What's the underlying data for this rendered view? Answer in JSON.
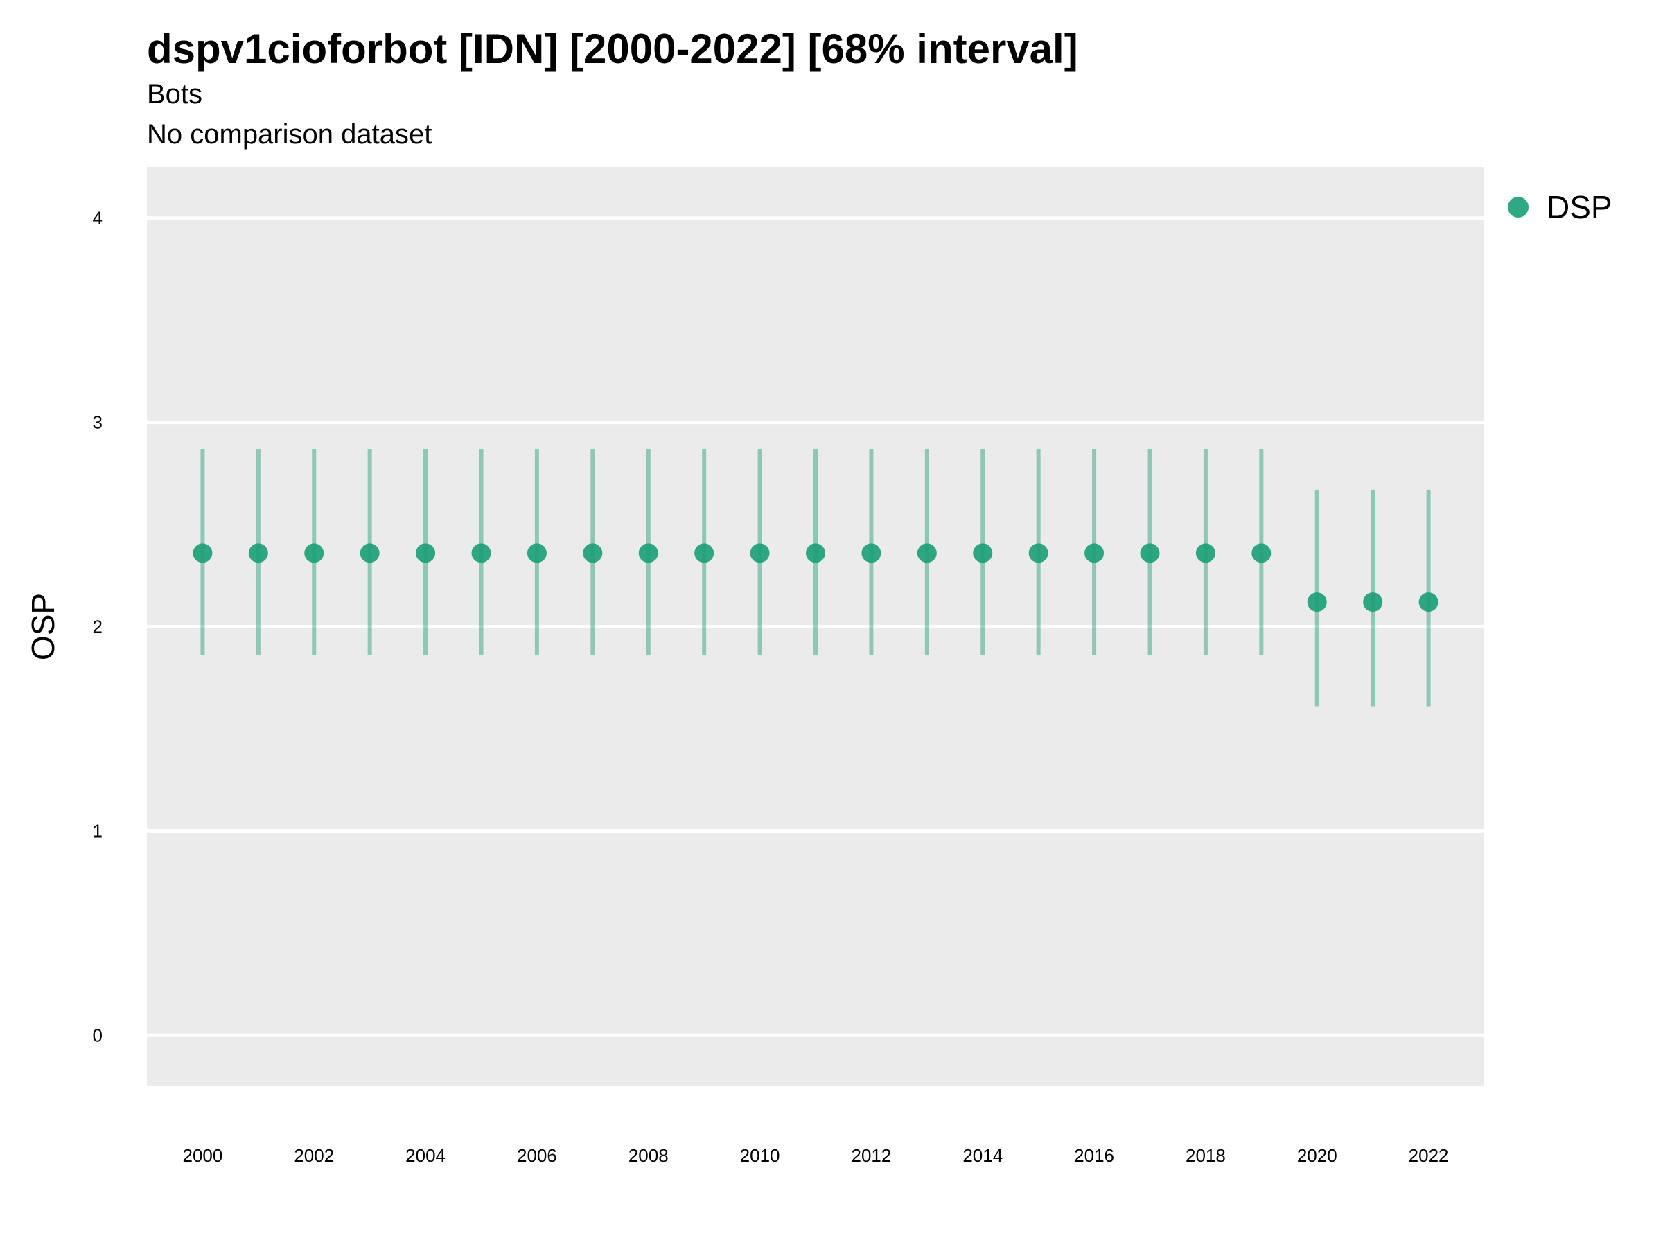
{
  "chart_data": {
    "type": "scatter",
    "title": "dspv1cioforbot [IDN] [2000-2022] [68% interval]",
    "subtitle": "Bots",
    "note": "No comparison dataset",
    "xlabel": "",
    "ylabel": "OSP",
    "xlim": [
      1999,
      2023
    ],
    "ylim": [
      -0.25,
      4.25
    ],
    "x_ticks": [
      2000,
      2002,
      2004,
      2006,
      2008,
      2010,
      2012,
      2014,
      2016,
      2018,
      2020,
      2022
    ],
    "y_ticks": [
      0,
      1,
      2,
      3,
      4
    ],
    "grid": true,
    "legend_position": "right",
    "series": [
      {
        "name": "DSP",
        "color": "#1b9e77",
        "x": [
          2000,
          2001,
          2002,
          2003,
          2004,
          2005,
          2006,
          2007,
          2008,
          2009,
          2010,
          2011,
          2012,
          2013,
          2014,
          2015,
          2016,
          2017,
          2018,
          2019,
          2020,
          2021,
          2022
        ],
        "y": [
          2.36,
          2.36,
          2.36,
          2.36,
          2.36,
          2.36,
          2.36,
          2.36,
          2.36,
          2.36,
          2.36,
          2.36,
          2.36,
          2.36,
          2.36,
          2.36,
          2.36,
          2.36,
          2.36,
          2.36,
          2.12,
          2.12,
          2.12
        ],
        "lower": [
          1.86,
          1.86,
          1.86,
          1.86,
          1.86,
          1.86,
          1.86,
          1.86,
          1.86,
          1.86,
          1.86,
          1.86,
          1.86,
          1.86,
          1.86,
          1.86,
          1.86,
          1.86,
          1.86,
          1.86,
          1.61,
          1.61,
          1.61
        ],
        "upper": [
          2.87,
          2.87,
          2.87,
          2.87,
          2.87,
          2.87,
          2.87,
          2.87,
          2.87,
          2.87,
          2.87,
          2.87,
          2.87,
          2.87,
          2.87,
          2.87,
          2.87,
          2.87,
          2.87,
          2.87,
          2.67,
          2.67,
          2.67
        ]
      }
    ],
    "colors": {
      "panel": "#ebebeb",
      "grid": "#ffffff"
    }
  }
}
